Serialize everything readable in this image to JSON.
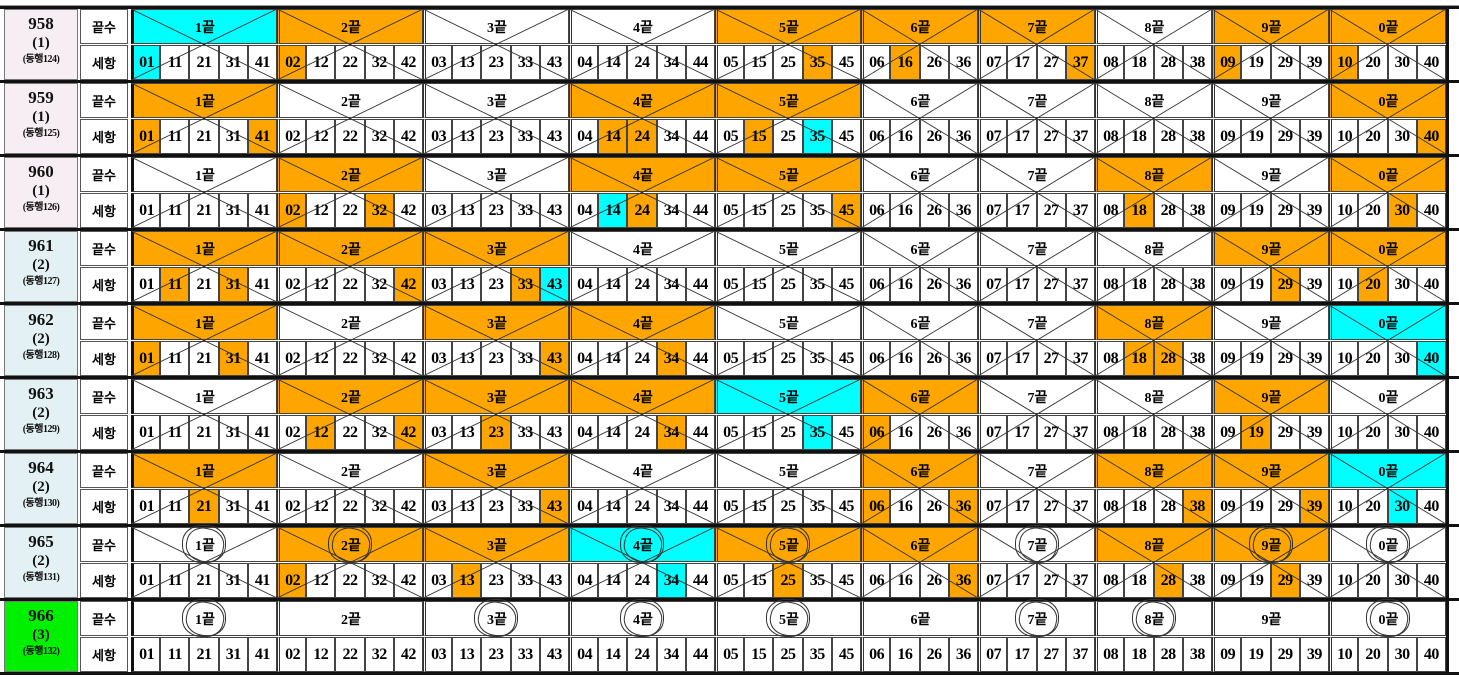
{
  "colors": {
    "orange": "#FFA500",
    "cyan": "#00FFFF",
    "white": "#FFFFFF",
    "left_pink": "#F7EEF3",
    "left_blue": "#E4F1F4",
    "left_green": "#00F000"
  },
  "groups": [
    {
      "label": "1끝",
      "numbers": [
        "01",
        "11",
        "21",
        "31",
        "41"
      ]
    },
    {
      "label": "2끝",
      "numbers": [
        "02",
        "12",
        "22",
        "32",
        "42"
      ]
    },
    {
      "label": "3끝",
      "numbers": [
        "03",
        "13",
        "23",
        "33",
        "43"
      ]
    },
    {
      "label": "4끝",
      "numbers": [
        "04",
        "14",
        "24",
        "34",
        "44"
      ]
    },
    {
      "label": "5끝",
      "numbers": [
        "05",
        "15",
        "25",
        "35",
        "45"
      ]
    },
    {
      "label": "6끝",
      "numbers": [
        "06",
        "16",
        "26",
        "36"
      ]
    },
    {
      "label": "7끝",
      "numbers": [
        "07",
        "17",
        "27",
        "37"
      ]
    },
    {
      "label": "8끝",
      "numbers": [
        "08",
        "18",
        "28",
        "38"
      ]
    },
    {
      "label": "9끝",
      "numbers": [
        "09",
        "19",
        "29",
        "39"
      ]
    },
    {
      "label": "0끝",
      "numbers": [
        "10",
        "20",
        "30",
        "40"
      ]
    }
  ],
  "rows": [
    {
      "draw": "958",
      "count": "(1)",
      "companion": "(동행124)",
      "left_color": "left_pink",
      "header_label": "끝수",
      "detail_label": "세항",
      "group_colors": [
        "cyan",
        "orange",
        "white",
        "white",
        "orange",
        "orange",
        "orange",
        "white",
        "orange",
        "orange"
      ],
      "highlights": {
        "01": "cyan",
        "02": "orange",
        "35": "orange",
        "16": "orange",
        "37": "orange",
        "09": "orange",
        "10": "orange"
      },
      "circled": [],
      "crossed": true
    },
    {
      "draw": "959",
      "count": "(1)",
      "companion": "(동행125)",
      "left_color": "left_pink",
      "header_label": "끝수",
      "detail_label": "세항",
      "group_colors": [
        "orange",
        "white",
        "white",
        "orange",
        "orange",
        "white",
        "white",
        "white",
        "white",
        "orange"
      ],
      "highlights": {
        "01": "orange",
        "41": "orange",
        "14": "orange",
        "24": "orange",
        "15": "orange",
        "35": "cyan",
        "40": "orange"
      },
      "circled": [],
      "crossed": true
    },
    {
      "draw": "960",
      "count": "(1)",
      "companion": "(동행126)",
      "left_color": "left_pink",
      "header_label": "끝수",
      "detail_label": "세항",
      "group_colors": [
        "white",
        "orange",
        "white",
        "orange",
        "orange",
        "white",
        "white",
        "orange",
        "white",
        "orange"
      ],
      "highlights": {
        "02": "orange",
        "32": "orange",
        "14": "cyan",
        "24": "orange",
        "45": "orange",
        "18": "orange",
        "30": "orange"
      },
      "circled": [],
      "crossed": true
    },
    {
      "draw": "961",
      "count": "(2)",
      "companion": "(동행127)",
      "left_color": "left_blue",
      "header_label": "끝수",
      "detail_label": "세항",
      "group_colors": [
        "orange",
        "orange",
        "orange",
        "white",
        "white",
        "white",
        "white",
        "white",
        "orange",
        "orange"
      ],
      "highlights": {
        "11": "orange",
        "31": "orange",
        "42": "orange",
        "33": "orange",
        "43": "cyan",
        "29": "orange",
        "20": "orange"
      },
      "circled": [],
      "crossed": true
    },
    {
      "draw": "962",
      "count": "(2)",
      "companion": "(동행128)",
      "left_color": "left_blue",
      "header_label": "끝수",
      "detail_label": "세항",
      "group_colors": [
        "orange",
        "white",
        "orange",
        "orange",
        "white",
        "white",
        "white",
        "orange",
        "white",
        "cyan"
      ],
      "highlights": {
        "01": "orange",
        "31": "orange",
        "43": "orange",
        "34": "orange",
        "18": "orange",
        "28": "orange",
        "40": "cyan"
      },
      "circled": [],
      "crossed": true
    },
    {
      "draw": "963",
      "count": "(2)",
      "companion": "(동행129)",
      "left_color": "left_blue",
      "header_label": "끝수",
      "detail_label": "세항",
      "group_colors": [
        "white",
        "orange",
        "orange",
        "orange",
        "cyan",
        "orange",
        "white",
        "white",
        "orange",
        "white"
      ],
      "highlights": {
        "12": "orange",
        "42": "orange",
        "23": "orange",
        "34": "orange",
        "35": "cyan",
        "06": "orange",
        "19": "orange"
      },
      "circled": [],
      "crossed": true
    },
    {
      "draw": "964",
      "count": "(2)",
      "companion": "(동행130)",
      "left_color": "left_blue",
      "header_label": "끝수",
      "detail_label": "세항",
      "group_colors": [
        "orange",
        "white",
        "orange",
        "white",
        "white",
        "orange",
        "white",
        "orange",
        "orange",
        "cyan"
      ],
      "highlights": {
        "21": "orange",
        "43": "orange",
        "06": "orange",
        "36": "orange",
        "38": "orange",
        "39": "orange",
        "30": "cyan"
      },
      "circled": [],
      "crossed": true
    },
    {
      "draw": "965",
      "count": "(2)",
      "companion": "(동행131)",
      "left_color": "left_blue",
      "header_label": "끝수",
      "detail_label": "세항",
      "group_colors": [
        "white",
        "orange",
        "orange",
        "cyan",
        "orange",
        "orange",
        "white",
        "orange",
        "orange",
        "white"
      ],
      "highlights": {
        "02": "orange",
        "13": "orange",
        "34": "cyan",
        "25": "orange",
        "36": "orange",
        "28": "orange",
        "29": "orange"
      },
      "circled": [
        0,
        1,
        3,
        4,
        6,
        8,
        9
      ],
      "crossed": true
    },
    {
      "draw": "966",
      "count": "(3)",
      "companion": "(동행132)",
      "left_color": "left_green",
      "header_label": "끝수",
      "detail_label": "세항",
      "group_colors": [
        "white",
        "white",
        "white",
        "white",
        "white",
        "white",
        "white",
        "white",
        "white",
        "white"
      ],
      "highlights": {},
      "circled": [
        0,
        2,
        3,
        4,
        6,
        7,
        9
      ],
      "crossed": false
    }
  ]
}
